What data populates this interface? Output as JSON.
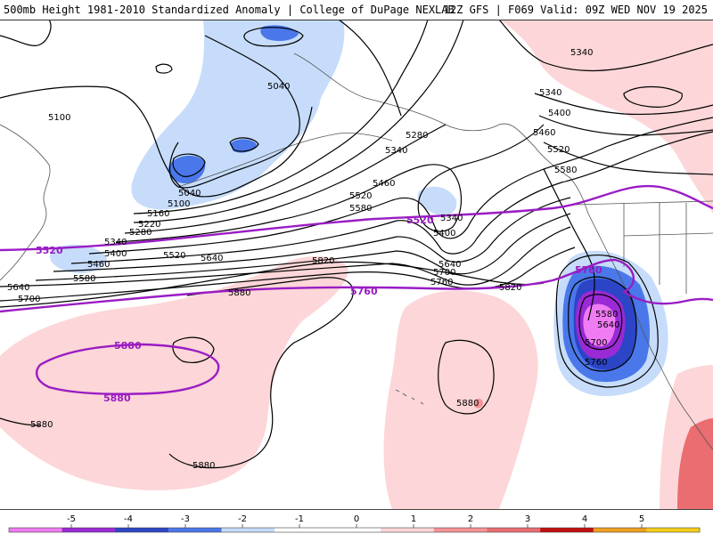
{
  "header": {
    "title": "500mb Height 1981-2010 Standardized Anomaly | College of DuPage NEXLAB",
    "valid": "12Z GFS | F069 Valid: 09Z WED NOV 19 2025"
  },
  "colors": {
    "neg5": "#f07cf4",
    "neg4": "#9a2ad6",
    "neg3": "#2c45c6",
    "neg2": "#4a78ea",
    "neg1": "#c6dcfa",
    "zero": "#ffffff",
    "pos1": "#fcd6d8",
    "pos2": "#f69396",
    "pos3": "#ea6d71",
    "pos4": "#c40f10",
    "pos5": "#f0a020",
    "pos6": "#f4cf1a",
    "height_contour": "#000000",
    "highlight_contour": "#9a1cc4",
    "coast": "#444444"
  },
  "colorbar": {
    "ticks": [
      "-5",
      "-4",
      "-3",
      "-2",
      "-1",
      "0",
      "1",
      "2",
      "3",
      "4",
      "5"
    ]
  },
  "contour_labels": {
    "c5100_nw": "5100",
    "c5040_n": "5040",
    "c5040_sw": "5040",
    "c5100_sw": "5100",
    "c5160": "5160",
    "c5220": "5220",
    "c5280_w": "5280",
    "c5340_w": "5340",
    "c5400_w": "5400",
    "c5460_w": "5460",
    "c5520_w": "5520",
    "c5580_w": "5580",
    "c5640_w": "5640",
    "c5640_far": "5640",
    "c5700_far": "5700",
    "c5280_ak": "5280",
    "c5340_ak": "5340",
    "c5460_mid": "5460",
    "c5520_mid": "5520",
    "c5580_mid": "5580",
    "c5340_low": "5340",
    "c5400_low": "5400",
    "c5640_trough": "5640",
    "c5700_trough": "5700",
    "c5760_trough": "5760",
    "c5820_mid": "5820",
    "c5880_w": "5880",
    "c5820_e": "5820",
    "c5880_far_sw": "5880",
    "c5880_s": "5880",
    "c5880_hawaii": "5880",
    "c5340_ne": "5340",
    "c5340_ne2": "5340",
    "c5400_ne": "5400",
    "c5460_ne": "5460",
    "c5520_ne": "5520",
    "c5580_ne": "5580",
    "cut_5580": "5580",
    "cut_5640": "5640",
    "cut_5700": "5700",
    "cut_5760": "5760",
    "p5520_w": "5520",
    "p5520_mid": "5520",
    "p5760_mid": "5760",
    "p5760_e": "5760",
    "p5880_top": "5880",
    "p5880_bottom": "5880"
  }
}
